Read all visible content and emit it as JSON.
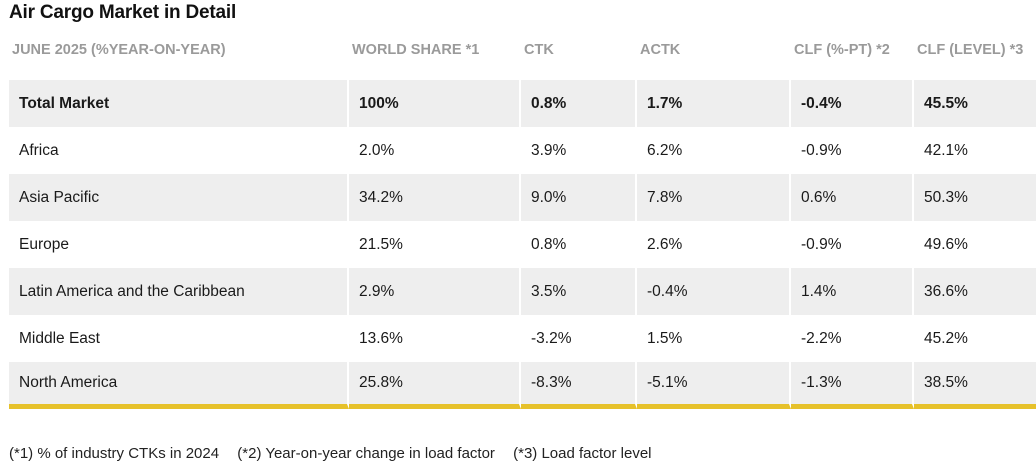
{
  "title": "Air Cargo Market in Detail",
  "columns": [
    "JUNE 2025 (%YEAR-ON-YEAR)",
    "WORLD SHARE *1",
    "CTK",
    "ACTK",
    "CLF (%-PT) *2",
    "CLF (LEVEL) *3"
  ],
  "rows": [
    {
      "region": "Total Market",
      "share": "100%",
      "ctk": "0.8%",
      "actk": "1.7%",
      "clf_pt": "-0.4%",
      "clf_level": "45.5%"
    },
    {
      "region": "Africa",
      "share": "2.0%",
      "ctk": "3.9%",
      "actk": "6.2%",
      "clf_pt": "-0.9%",
      "clf_level": "42.1%"
    },
    {
      "region": "Asia Pacific",
      "share": "34.2%",
      "ctk": "9.0%",
      "actk": "7.8%",
      "clf_pt": "0.6%",
      "clf_level": "50.3%"
    },
    {
      "region": "Europe",
      "share": "21.5%",
      "ctk": "0.8%",
      "actk": "2.6%",
      "clf_pt": "-0.9%",
      "clf_level": "49.6%"
    },
    {
      "region": "Latin America and the Caribbean",
      "share": "2.9%",
      "ctk": "3.5%",
      "actk": "-0.4%",
      "clf_pt": "1.4%",
      "clf_level": "36.6%"
    },
    {
      "region": "Middle East",
      "share": "13.6%",
      "ctk": "-3.2%",
      "actk": "1.5%",
      "clf_pt": "-2.2%",
      "clf_level": "45.2%"
    },
    {
      "region": "North America",
      "share": "25.8%",
      "ctk": "-8.3%",
      "actk": "-5.1%",
      "clf_pt": "-1.3%",
      "clf_level": "38.5%"
    }
  ],
  "footnotes": [
    "(*1) % of industry CTKs in 2024",
    "(*2) Year-on-year change in load factor",
    "(*3) Load factor level"
  ],
  "colors": {
    "header_text": "#9a9a9a",
    "stripe": "#eeeeee",
    "accent_rule": "#e6c12a"
  }
}
